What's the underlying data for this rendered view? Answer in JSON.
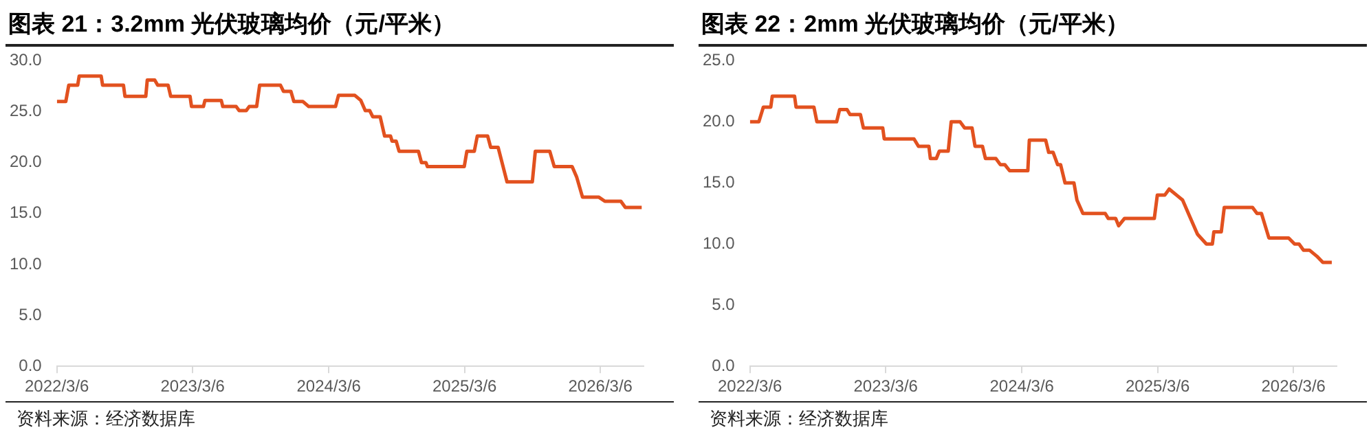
{
  "chart_data": [
    {
      "type": "line",
      "title": "图表 21：3.2mm 光伏玻璃均价（元/平米）",
      "annotations": [
        "资料来源：经济数据库"
      ],
      "legend": false,
      "grid": false,
      "xlim": [
        "2022-03-06",
        "2026-06-30"
      ],
      "xticks": [
        {
          "value": "2022-03-06",
          "label": "2022/3/6"
        },
        {
          "value": "2023-03-06",
          "label": "2023/3/6"
        },
        {
          "value": "2024-03-06",
          "label": "2024/3/6"
        },
        {
          "value": "2025-03-06",
          "label": "2025/3/6"
        },
        {
          "value": "2026-03-06",
          "label": "2026/3/6"
        }
      ],
      "ylim": [
        0,
        30
      ],
      "yticks": [
        {
          "value": 0,
          "label": "0.0"
        },
        {
          "value": 5,
          "label": "5.0"
        },
        {
          "value": 10,
          "label": "10.0"
        },
        {
          "value": 15,
          "label": "15.0"
        },
        {
          "value": 20,
          "label": "20.0"
        },
        {
          "value": 25,
          "label": "25.0"
        },
        {
          "value": 30,
          "label": "30.0"
        }
      ],
      "series": [
        {
          "color": "#e2511f",
          "x": [
            "2022-03-06",
            "2022-03-30",
            "2022-04-07",
            "2022-05-01",
            "2022-05-05",
            "2022-07-03",
            "2022-07-07",
            "2022-09-01",
            "2022-09-05",
            "2022-10-31",
            "2022-11-04",
            "2022-11-24",
            "2022-12-02",
            "2022-12-30",
            "2023-01-06",
            "2023-02-27",
            "2023-03-03",
            "2023-04-04",
            "2023-04-08",
            "2023-05-22",
            "2023-05-26",
            "2023-07-01",
            "2023-07-09",
            "2023-07-28",
            "2023-08-05",
            "2023-08-25",
            "2023-09-02",
            "2023-10-28",
            "2023-11-05",
            "2023-11-25",
            "2023-12-03",
            "2023-12-27",
            "2024-01-12",
            "2024-03-24",
            "2024-04-01",
            "2024-05-15",
            "2024-05-31",
            "2024-06-12",
            "2024-06-24",
            "2024-07-02",
            "2024-07-22",
            "2024-08-03",
            "2024-08-19",
            "2024-08-23",
            "2024-09-03",
            "2024-09-11",
            "2024-11-02",
            "2024-11-10",
            "2024-11-22",
            "2024-11-26",
            "2025-03-05",
            "2025-03-12",
            "2025-04-01",
            "2025-04-09",
            "2025-05-07",
            "2025-05-15",
            "2025-06-04",
            "2025-06-28",
            "2025-09-04",
            "2025-09-12",
            "2025-10-21",
            "2025-11-02",
            "2025-12-20",
            "2026-01-01",
            "2026-01-17",
            "2026-03-02",
            "2026-03-18",
            "2026-04-30",
            "2026-05-12",
            "2026-06-25"
          ],
          "values": [
            26.0,
            26.0,
            27.6,
            27.6,
            28.5,
            28.5,
            27.6,
            27.6,
            26.5,
            26.5,
            28.1,
            28.1,
            27.6,
            27.6,
            26.5,
            26.5,
            25.5,
            25.5,
            26.1,
            26.1,
            25.5,
            25.5,
            25.1,
            25.1,
            25.5,
            25.5,
            27.6,
            27.6,
            27.0,
            27.0,
            26.0,
            26.0,
            25.5,
            25.5,
            26.6,
            26.6,
            26.1,
            25.1,
            25.1,
            24.5,
            24.5,
            22.6,
            22.6,
            22.1,
            22.1,
            21.1,
            21.1,
            20.0,
            20.0,
            19.6,
            19.6,
            21.1,
            21.1,
            22.6,
            22.6,
            21.5,
            21.5,
            18.1,
            18.1,
            21.1,
            21.1,
            19.6,
            19.6,
            18.6,
            16.6,
            16.6,
            16.2,
            16.2,
            15.6,
            15.6
          ]
        }
      ]
    },
    {
      "type": "line",
      "title": "图表 22：2mm 光伏玻璃均价（元/平米）",
      "annotations": [
        "资料来源：经济数据库"
      ],
      "legend": false,
      "grid": false,
      "xlim": [
        "2022-03-06",
        "2026-06-30"
      ],
      "xticks": [
        {
          "value": "2022-03-06",
          "label": "2022/3/6"
        },
        {
          "value": "2023-03-06",
          "label": "2023/3/6"
        },
        {
          "value": "2024-03-06",
          "label": "2024/3/6"
        },
        {
          "value": "2025-03-06",
          "label": "2025/3/6"
        },
        {
          "value": "2026-03-06",
          "label": "2026/3/6"
        }
      ],
      "ylim": [
        0,
        25
      ],
      "yticks": [
        {
          "value": 0,
          "label": "0.0"
        },
        {
          "value": 5,
          "label": "5.0"
        },
        {
          "value": 10,
          "label": "10.0"
        },
        {
          "value": 15,
          "label": "15.0"
        },
        {
          "value": 20,
          "label": "20.0"
        },
        {
          "value": 25,
          "label": "25.0"
        }
      ],
      "series": [
        {
          "color": "#e2511f",
          "x": [
            "2022-03-06",
            "2022-03-30",
            "2022-04-11",
            "2022-05-01",
            "2022-05-05",
            "2022-07-04",
            "2022-07-08",
            "2022-08-25",
            "2022-09-02",
            "2022-10-25",
            "2022-11-02",
            "2022-11-22",
            "2022-11-30",
            "2022-12-28",
            "2023-01-05",
            "2023-02-26",
            "2023-03-02",
            "2023-05-21",
            "2023-06-02",
            "2023-06-30",
            "2023-07-04",
            "2023-07-20",
            "2023-07-28",
            "2023-08-21",
            "2023-08-29",
            "2023-09-22",
            "2023-10-04",
            "2023-10-24",
            "2023-11-01",
            "2023-11-21",
            "2023-11-29",
            "2023-12-27",
            "2024-01-08",
            "2024-01-20",
            "2024-02-02",
            "2024-03-22",
            "2024-03-26",
            "2024-05-09",
            "2024-05-17",
            "2024-05-29",
            "2024-06-10",
            "2024-06-18",
            "2024-06-30",
            "2024-07-24",
            "2024-08-01",
            "2024-08-17",
            "2024-10-16",
            "2024-10-24",
            "2024-11-13",
            "2024-11-21",
            "2024-12-07",
            "2025-02-25",
            "2025-03-05",
            "2025-03-25",
            "2025-04-06",
            "2025-04-26",
            "2025-05-12",
            "2025-06-01",
            "2025-06-21",
            "2025-07-15",
            "2025-07-31",
            "2025-08-04",
            "2025-08-24",
            "2025-09-01",
            "2025-11-16",
            "2025-11-28",
            "2025-12-10",
            "2025-12-30",
            "2026-02-21",
            "2026-03-09",
            "2026-03-21",
            "2026-04-02",
            "2026-04-18",
            "2026-05-08",
            "2026-05-24",
            "2026-06-17"
          ],
          "values": [
            20.0,
            20.0,
            21.2,
            21.2,
            22.1,
            22.1,
            21.2,
            21.2,
            20.0,
            20.0,
            21.0,
            21.0,
            20.6,
            20.6,
            19.5,
            19.5,
            18.6,
            18.6,
            18.0,
            18.0,
            17.0,
            17.0,
            17.6,
            17.6,
            20.0,
            20.0,
            19.5,
            19.5,
            18.0,
            18.0,
            17.0,
            17.0,
            16.5,
            16.5,
            16.0,
            16.0,
            18.5,
            18.5,
            17.5,
            17.5,
            16.5,
            16.5,
            15.0,
            15.0,
            13.6,
            12.5,
            12.5,
            12.1,
            12.1,
            11.5,
            12.1,
            12.1,
            14.0,
            14.0,
            14.5,
            14.0,
            13.6,
            12.2,
            10.8,
            10.0,
            10.0,
            11.0,
            11.0,
            13.0,
            13.0,
            12.5,
            12.5,
            10.5,
            10.5,
            10.0,
            10.0,
            9.5,
            9.5,
            9.0,
            8.5,
            8.5
          ]
        }
      ]
    }
  ]
}
